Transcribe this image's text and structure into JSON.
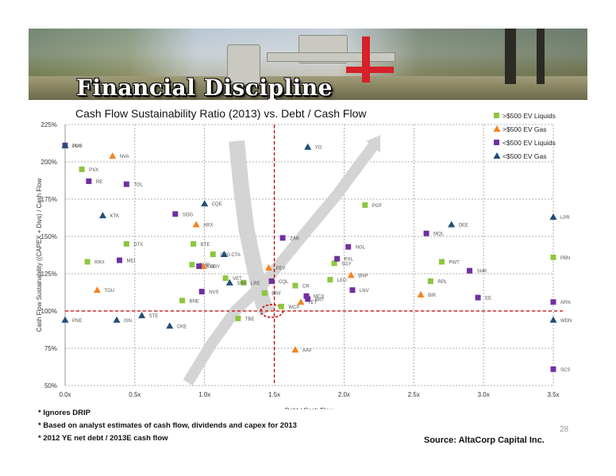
{
  "banner": {
    "title": "Financial Discipline"
  },
  "chart_data": {
    "type": "scatter",
    "title": "Cash Flow Sustainability Ratio (2013) vs. Debt / Cash Flow",
    "xlabel": "Debt / Cash Flow",
    "ylabel": "Cash Flow Sustainability ((CAPEX + Divs) / Cash Flow",
    "xlim": [
      0,
      3.5
    ],
    "ylim": [
      50,
      225
    ],
    "x_ticks": [
      0,
      0.5,
      1.0,
      1.5,
      2.0,
      2.5,
      3.0,
      3.5
    ],
    "x_tick_labels": [
      "0.0x",
      "0.5x",
      "1.0x",
      "1.5x",
      "2.0x",
      "2.5x",
      "3.0x",
      "3.5x"
    ],
    "y_ticks": [
      50,
      75,
      100,
      125,
      150,
      175,
      200,
      225
    ],
    "y_tick_labels": [
      "50%",
      "75%",
      "100%",
      "125%",
      "150%",
      "175%",
      "200%",
      "225%"
    ],
    "grid": true,
    "legend_position": "top-right",
    "reference_lines": {
      "x": 1.5,
      "y": 100,
      "color": "#c00000"
    },
    "series": [
      {
        "name": ">$500 EV Liquids",
        "marker": "square",
        "color": "#8dc63f",
        "points": [
          {
            "label": "PXX",
            "x": 0.12,
            "y": 195
          },
          {
            "label": "RRX",
            "x": 0.16,
            "y": 133
          },
          {
            "label": "DTX",
            "x": 0.44,
            "y": 145
          },
          {
            "label": "BTE",
            "x": 0.92,
            "y": 145
          },
          {
            "label": "CPG",
            "x": 1.06,
            "y": 138
          },
          {
            "label": "RMP",
            "x": 0.91,
            "y": 131
          },
          {
            "label": "BNE",
            "x": 0.84,
            "y": 107
          },
          {
            "label": "VET",
            "x": 1.15,
            "y": 122
          },
          {
            "label": "LRE",
            "x": 1.28,
            "y": 119
          },
          {
            "label": "TBE",
            "x": 1.24,
            "y": 95
          },
          {
            "label": "ERF",
            "x": 1.43,
            "y": 112
          },
          {
            "label": "WCP",
            "x": 1.55,
            "y": 103
          },
          {
            "label": "CR",
            "x": 1.65,
            "y": 117
          },
          {
            "label": "LEG",
            "x": 1.9,
            "y": 121
          },
          {
            "label": "SGY",
            "x": 1.93,
            "y": 132
          },
          {
            "label": "PGF",
            "x": 2.15,
            "y": 171
          },
          {
            "label": "RPL",
            "x": 2.62,
            "y": 120
          },
          {
            "label": "PWT",
            "x": 2.7,
            "y": 133
          },
          {
            "label": "PBN",
            "x": 3.5,
            "y": 136
          }
        ]
      },
      {
        "name": ">$500 EV Gas",
        "marker": "triangle",
        "color": "#f58220",
        "points": [
          {
            "label": "NVA",
            "x": 0.34,
            "y": 204
          },
          {
            "label": "TOU",
            "x": 0.23,
            "y": 114
          },
          {
            "label": "ARX",
            "x": 0.94,
            "y": 158
          },
          {
            "label": "PRY",
            "x": 0.99,
            "y": 130
          },
          {
            "label": "PEY",
            "x": 1.46,
            "y": 129
          },
          {
            "label": "AAV",
            "x": 1.65,
            "y": 74
          },
          {
            "label": "TET",
            "x": 1.69,
            "y": 106
          },
          {
            "label": "BNP",
            "x": 2.05,
            "y": 124
          },
          {
            "label": "BIR",
            "x": 2.55,
            "y": 111
          }
        ]
      },
      {
        "name": "<$500 EV Liquids",
        "marker": "square",
        "color": "#7030a0",
        "points": [
          {
            "label": "PPY",
            "x": 0,
            "y": 211
          },
          {
            "label": "RE",
            "x": 0.17,
            "y": 187
          },
          {
            "label": "TOL",
            "x": 0.44,
            "y": 185
          },
          {
            "label": "SOG",
            "x": 0.79,
            "y": 165
          },
          {
            "label": "MEI",
            "x": 0.39,
            "y": 134
          },
          {
            "label": "BXE",
            "x": 0.96,
            "y": 130
          },
          {
            "label": "NVS",
            "x": 0.98,
            "y": 113
          },
          {
            "label": "ZAR",
            "x": 1.56,
            "y": 149
          },
          {
            "label": "CQL",
            "x": 1.48,
            "y": 120
          },
          {
            "label": "MCX",
            "x": 1.73,
            "y": 110
          },
          {
            "label": "BRT",
            "x": 1.74,
            "y": 108
          },
          {
            "label": "NGL",
            "x": 2.03,
            "y": 143
          },
          {
            "label": "PXL",
            "x": 1.95,
            "y": 135
          },
          {
            "label": "LNV",
            "x": 2.06,
            "y": 114
          },
          {
            "label": "MQL",
            "x": 2.59,
            "y": 152
          },
          {
            "label": "SHR",
            "x": 2.9,
            "y": 127
          },
          {
            "label": "EE",
            "x": 2.96,
            "y": 109
          },
          {
            "label": "ARN",
            "x": 3.5,
            "y": 106
          },
          {
            "label": "SCS",
            "x": 3.5,
            "y": 61
          }
        ]
      },
      {
        "name": "<$500 EV Gas",
        "marker": "triangle",
        "color": "#1f4e79",
        "points": [
          {
            "label": "TOG",
            "x": 0,
            "y": 211
          },
          {
            "label": "YO",
            "x": 1.74,
            "y": 210
          },
          {
            "label": "KTK",
            "x": 0.27,
            "y": 164
          },
          {
            "label": "CQE",
            "x": 1.0,
            "y": 172
          },
          {
            "label": "CTA",
            "x": 1.14,
            "y": 138
          },
          {
            "label": "SRX",
            "x": 1.18,
            "y": 119
          },
          {
            "label": "PNE",
            "x": 0,
            "y": 94
          },
          {
            "label": "ISN",
            "x": 0.37,
            "y": 94
          },
          {
            "label": "STE",
            "x": 0.55,
            "y": 97
          },
          {
            "label": "CKE",
            "x": 0.75,
            "y": 90
          },
          {
            "label": "DEE",
            "x": 2.77,
            "y": 158
          },
          {
            "label": "LPR",
            "x": 3.5,
            "y": 163
          },
          {
            "label": "WDN",
            "x": 3.5,
            "y": 94
          }
        ]
      }
    ]
  },
  "footnotes": [
    "* Ignores DRIP",
    "* Based on analyst estimates of cash flow, dividends and capex for 2013",
    "* 2012 YE net debt / 2013E cash flow"
  ],
  "source": "Source: AltaCorp Capital Inc.",
  "page_number": "28"
}
